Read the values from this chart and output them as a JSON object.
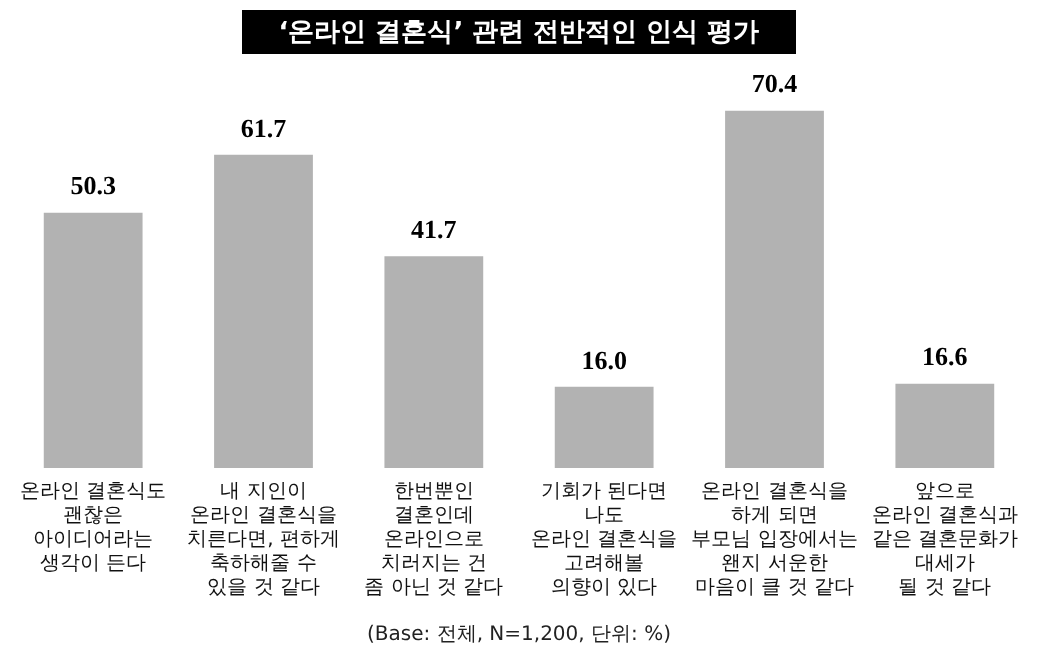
{
  "chart_data": {
    "type": "bar",
    "title": "‘온라인 결혼식’ 관련 전반적인 인식 평가",
    "categories": [
      "온라인 결혼식도\n괜찮은\n아이디어라는\n생각이 든다",
      "내 지인이\n온라인 결혼식을\n치른다면, 편하게\n축하해줄 수\n있을 것 같다",
      "한번뿐인\n결혼인데\n온라인으로\n치러지는 건\n좀 아닌 것 같다",
      "기회가 된다면\n나도\n온라인 결혼식을\n고려해볼\n의향이 있다",
      "온라인 결혼식을\n하게 되면\n부모님 입장에서는\n왠지 서운한\n마음이 클 것 같다",
      "앞으로\n온라인 결혼식과\n같은 결혼문화가\n대세가\n될 것 같다"
    ],
    "values": [
      50.3,
      61.7,
      41.7,
      16.0,
      70.4,
      16.6
    ],
    "value_labels": [
      "50.3",
      "61.7",
      "41.7",
      "16.0",
      "70.4",
      "16.6"
    ],
    "color": "#b2b2b2",
    "grid": false,
    "legend": false,
    "annotations": [
      "(Base: 전체, N=1,200, 단위: %)"
    ]
  }
}
